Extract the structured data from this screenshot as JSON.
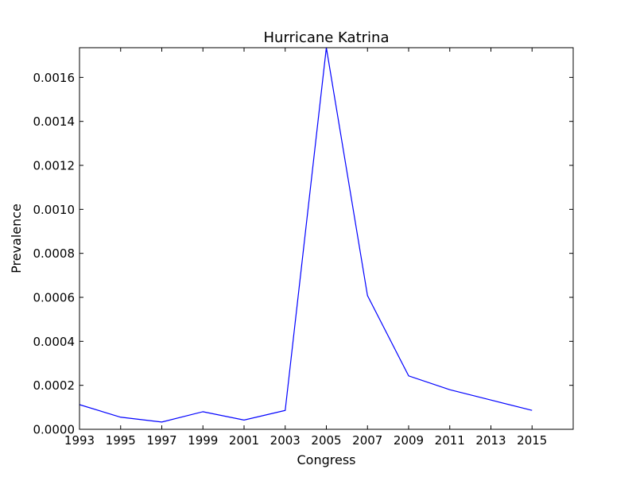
{
  "chart_data": {
    "type": "line",
    "title": "Hurricane Katrina",
    "xlabel": "Congress",
    "ylabel": "Prevalence",
    "xlim": [
      1993,
      2017
    ],
    "ylim": [
      0,
      0.001735
    ],
    "x_ticks": [
      "1993",
      "1995",
      "1997",
      "1999",
      "2001",
      "2003",
      "2005",
      "2007",
      "2009",
      "2011",
      "2013",
      "2015"
    ],
    "y_ticks": [
      "0.0000",
      "0.0002",
      "0.0004",
      "0.0006",
      "0.0008",
      "0.0010",
      "0.0012",
      "0.0014",
      "0.0016"
    ],
    "series": [
      {
        "name": "Hurricane Katrina",
        "color": "#0000ff",
        "x": [
          1993,
          1995,
          1997,
          1999,
          2001,
          2003,
          2005,
          2007,
          2009,
          2011,
          2013,
          2015
        ],
        "values": [
          0.000112,
          5.5e-05,
          3.3e-05,
          8e-05,
          4.2e-05,
          8.6e-05,
          0.001735,
          0.000608,
          0.000243,
          0.00018,
          0.000133,
          8.6e-05
        ]
      }
    ],
    "grid": false,
    "legend": "none"
  }
}
